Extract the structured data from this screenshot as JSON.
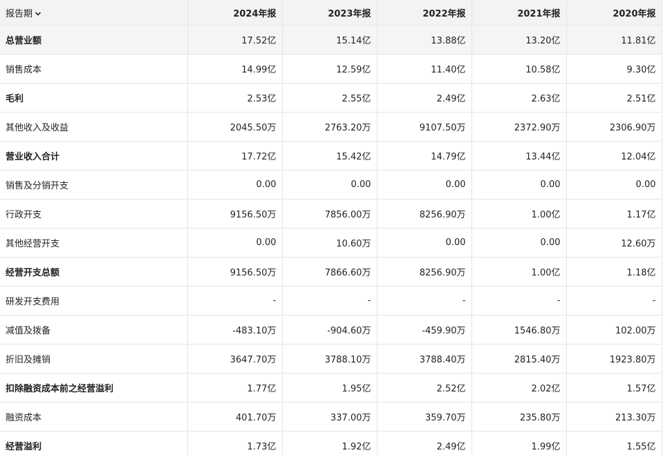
{
  "table": {
    "header": [
      "报告期",
      "2024年报",
      "2023年报",
      "2022年报",
      "2021年报",
      "2020年报"
    ],
    "rows": [
      [
        "总营业额",
        "17.52亿",
        "15.14亿",
        "13.88亿",
        "13.20亿",
        "11.81亿"
      ],
      [
        "销售成本",
        "14.99亿",
        "12.59亿",
        "11.40亿",
        "10.58亿",
        "9.30亿"
      ],
      [
        "毛利",
        "2.53亿",
        "2.55亿",
        "2.49亿",
        "2.63亿",
        "2.51亿"
      ],
      [
        "其他收入及收益",
        "2045.50万",
        "2763.20万",
        "9107.50万",
        "2372.90万",
        "2306.90万"
      ],
      [
        "营业收入合计",
        "17.72亿",
        "15.42亿",
        "14.79亿",
        "13.44亿",
        "12.04亿"
      ],
      [
        "销售及分销开支",
        "0.00",
        "0.00",
        "0.00",
        "0.00",
        "0.00"
      ],
      [
        "行政开支",
        "9156.50万",
        "7856.00万",
        "8256.90万",
        "1.00亿",
        "1.17亿"
      ],
      [
        "其他经营开支",
        "0.00",
        "10.60万",
        "0.00",
        "0.00",
        "12.60万"
      ],
      [
        "经营开支总额",
        "9156.50万",
        "7866.60万",
        "8256.90万",
        "1.00亿",
        "1.18亿"
      ],
      [
        "研发开支费用",
        "-",
        "-",
        "-",
        "-",
        "-"
      ],
      [
        "减值及拨备",
        "-483.10万",
        "-904.60万",
        "-459.90万",
        "1546.80万",
        "102.00万"
      ],
      [
        "折旧及摊销",
        "3647.70万",
        "3788.10万",
        "3788.40万",
        "2815.40万",
        "1923.80万"
      ],
      [
        "扣除融资成本前之经营溢利",
        "1.77亿",
        "1.95亿",
        "2.52亿",
        "2.02亿",
        "1.57亿"
      ],
      [
        "融资成本",
        "401.70万",
        "337.00万",
        "359.70万",
        "235.80万",
        "213.30万"
      ],
      [
        "经营溢利",
        "1.73亿",
        "1.92亿",
        "2.49亿",
        "1.99亿",
        "1.55亿"
      ]
    ]
  }
}
